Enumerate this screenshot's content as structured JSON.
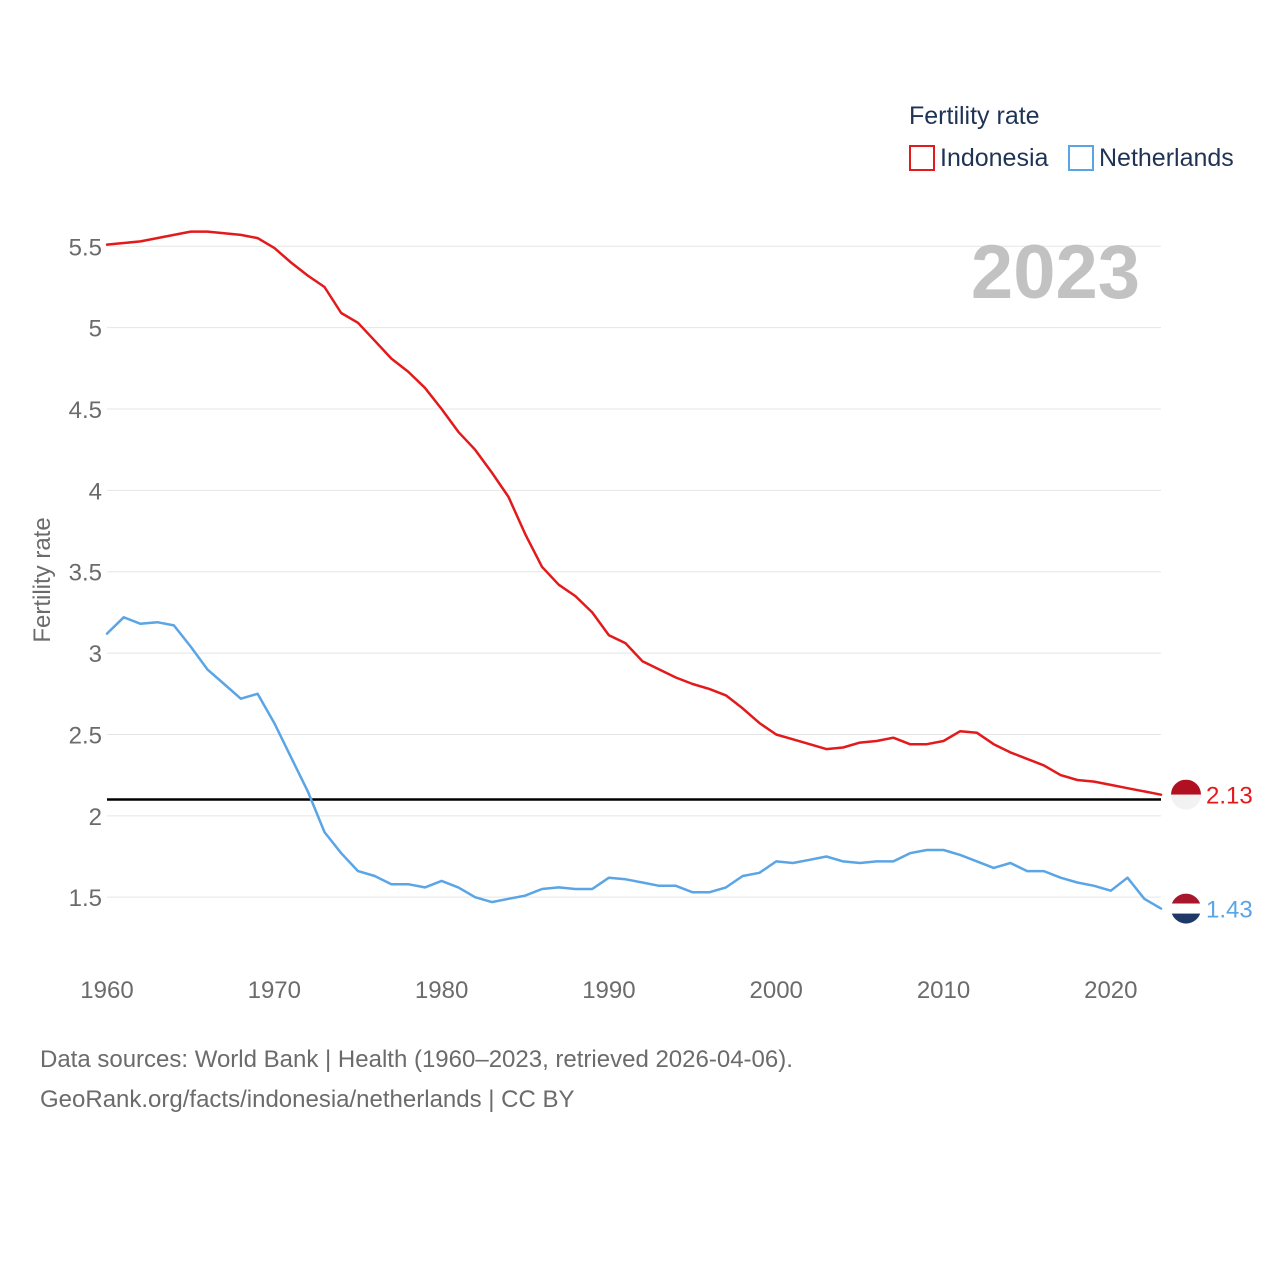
{
  "chart_data": {
    "type": "line",
    "title": "Fertility rate",
    "year_label": "2023",
    "ylabel": "Fertility rate",
    "xlabel": "",
    "xlim": [
      1960,
      2023
    ],
    "ylim": [
      1.2,
      5.6
    ],
    "y_ticks": [
      1.5,
      2,
      2.5,
      3,
      3.5,
      4,
      4.5,
      5,
      5.5
    ],
    "y_tick_labels": [
      "1.5",
      "2",
      "2.5",
      "3",
      "3.5",
      "4",
      "4.5",
      "5",
      "5.5"
    ],
    "x_ticks": [
      1960,
      1970,
      1980,
      1990,
      2000,
      2010,
      2020
    ],
    "x_tick_labels": [
      "1960",
      "1970",
      "1980",
      "1990",
      "2000",
      "2010",
      "2020"
    ],
    "reference_line": 2.1,
    "grid": true,
    "legend_position": "top-right",
    "series": [
      {
        "name": "Indonesia",
        "color": "#e31a1c",
        "end_label": "2.13",
        "flag": "indonesia-flag",
        "x": [
          1960,
          1961,
          1962,
          1963,
          1964,
          1965,
          1966,
          1967,
          1968,
          1969,
          1970,
          1971,
          1972,
          1973,
          1974,
          1975,
          1976,
          1977,
          1978,
          1979,
          1980,
          1981,
          1982,
          1983,
          1984,
          1985,
          1986,
          1987,
          1988,
          1989,
          1990,
          1991,
          1992,
          1993,
          1994,
          1995,
          1996,
          1997,
          1998,
          1999,
          2000,
          2001,
          2002,
          2003,
          2004,
          2005,
          2006,
          2007,
          2008,
          2009,
          2010,
          2011,
          2012,
          2013,
          2014,
          2015,
          2016,
          2017,
          2018,
          2019,
          2020,
          2021,
          2022,
          2023
        ],
        "values": [
          5.51,
          5.52,
          5.53,
          5.55,
          5.57,
          5.59,
          5.59,
          5.58,
          5.57,
          5.55,
          5.49,
          5.4,
          5.32,
          5.25,
          5.09,
          5.03,
          4.92,
          4.81,
          4.73,
          4.63,
          4.5,
          4.36,
          4.25,
          4.11,
          3.96,
          3.73,
          3.53,
          3.42,
          3.35,
          3.25,
          3.11,
          3.06,
          2.95,
          2.9,
          2.85,
          2.81,
          2.78,
          2.74,
          2.66,
          2.57,
          2.5,
          2.47,
          2.44,
          2.41,
          2.42,
          2.45,
          2.46,
          2.48,
          2.44,
          2.44,
          2.46,
          2.52,
          2.51,
          2.44,
          2.39,
          2.35,
          2.31,
          2.25,
          2.22,
          2.21,
          2.19,
          2.17,
          2.15,
          2.13
        ]
      },
      {
        "name": "Netherlands",
        "color": "#5aa5e6",
        "end_label": "1.43",
        "flag": "netherlands-flag",
        "x": [
          1960,
          1961,
          1962,
          1963,
          1964,
          1965,
          1966,
          1967,
          1968,
          1969,
          1970,
          1971,
          1972,
          1973,
          1974,
          1975,
          1976,
          1977,
          1978,
          1979,
          1980,
          1981,
          1982,
          1983,
          1984,
          1985,
          1986,
          1987,
          1988,
          1989,
          1990,
          1991,
          1992,
          1993,
          1994,
          1995,
          1996,
          1997,
          1998,
          1999,
          2000,
          2001,
          2002,
          2003,
          2004,
          2005,
          2006,
          2007,
          2008,
          2009,
          2010,
          2011,
          2012,
          2013,
          2014,
          2015,
          2016,
          2017,
          2018,
          2019,
          2020,
          2021,
          2022,
          2023
        ],
        "values": [
          3.12,
          3.22,
          3.18,
          3.19,
          3.17,
          3.04,
          2.9,
          2.81,
          2.72,
          2.75,
          2.57,
          2.36,
          2.15,
          1.9,
          1.77,
          1.66,
          1.63,
          1.58,
          1.58,
          1.56,
          1.6,
          1.56,
          1.5,
          1.47,
          1.49,
          1.51,
          1.55,
          1.56,
          1.55,
          1.55,
          1.62,
          1.61,
          1.59,
          1.57,
          1.57,
          1.53,
          1.53,
          1.56,
          1.63,
          1.65,
          1.72,
          1.71,
          1.73,
          1.75,
          1.72,
          1.71,
          1.72,
          1.72,
          1.77,
          1.79,
          1.79,
          1.76,
          1.72,
          1.68,
          1.71,
          1.66,
          1.66,
          1.62,
          1.59,
          1.57,
          1.54,
          1.62,
          1.49,
          1.43
        ]
      }
    ]
  },
  "footer": {
    "line1": "Data sources: World Bank | Health (1960–2023, retrieved 2026-04-06).",
    "line2": "GeoRank.org/facts/indonesia/netherlands | CC BY"
  },
  "colors": {
    "indonesia": "#e31a1c",
    "netherlands": "#5aa5e6",
    "reference": "#000000",
    "grid": "#e5e5e5"
  }
}
